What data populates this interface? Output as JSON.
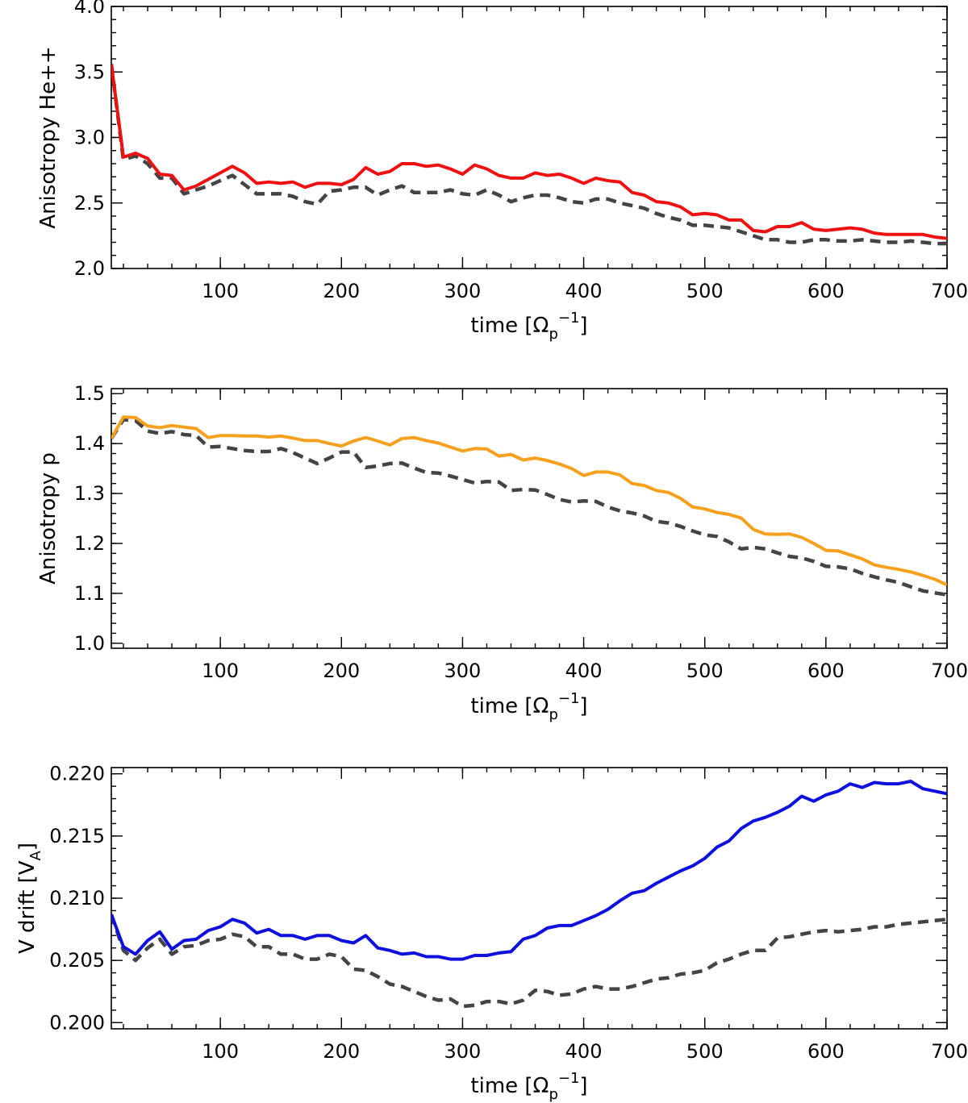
{
  "chart_data": [
    {
      "type": "line",
      "xlabel": "time [Ωp⁻¹]",
      "xlabel_parts": {
        "pre": "time [Ω",
        "sub": "p",
        "sup": "−1",
        "post": "]"
      },
      "ylabel": "Anisotropy He++",
      "xlim": [
        10,
        700
      ],
      "ylim": [
        2.0,
        4.0
      ],
      "xticks": [
        100,
        200,
        300,
        400,
        500,
        600,
        700
      ],
      "xtick_labels": [
        "100",
        "200",
        "300",
        "400",
        "500",
        "600",
        "700"
      ],
      "yticks": [
        2.0,
        2.5,
        3.0,
        3.5,
        4.0
      ],
      "ytick_labels": [
        "2.0",
        "2.5",
        "3.0",
        "3.5",
        "4.0"
      ],
      "x_minor_step": 20,
      "y_minor_step": 0.1,
      "x": [
        10,
        20,
        30,
        40,
        50,
        60,
        70,
        80,
        90,
        100,
        110,
        120,
        130,
        140,
        150,
        160,
        170,
        180,
        190,
        200,
        210,
        220,
        230,
        240,
        250,
        260,
        270,
        280,
        290,
        300,
        310,
        320,
        330,
        340,
        350,
        360,
        370,
        380,
        390,
        400,
        410,
        420,
        430,
        440,
        450,
        460,
        470,
        480,
        490,
        500,
        510,
        520,
        530,
        540,
        550,
        560,
        570,
        580,
        590,
        600,
        610,
        620,
        630,
        640,
        650,
        660,
        670,
        680,
        690,
        700
      ],
      "series": [
        {
          "name": "solid",
          "color": "#ee1111",
          "dash": "solid",
          "values": [
            3.56,
            2.85,
            2.88,
            2.84,
            2.72,
            2.71,
            2.6,
            2.63,
            2.68,
            2.73,
            2.78,
            2.73,
            2.65,
            2.66,
            2.65,
            2.66,
            2.62,
            2.65,
            2.65,
            2.64,
            2.68,
            2.77,
            2.72,
            2.74,
            2.8,
            2.8,
            2.78,
            2.79,
            2.76,
            2.72,
            2.79,
            2.76,
            2.71,
            2.69,
            2.69,
            2.73,
            2.71,
            2.72,
            2.69,
            2.65,
            2.69,
            2.67,
            2.66,
            2.58,
            2.56,
            2.51,
            2.5,
            2.47,
            2.41,
            2.42,
            2.41,
            2.37,
            2.37,
            2.29,
            2.28,
            2.32,
            2.32,
            2.35,
            2.3,
            2.29,
            2.3,
            2.31,
            2.3,
            2.27,
            2.26,
            2.26,
            2.26,
            2.26,
            2.24,
            2.23
          ]
        },
        {
          "name": "dashed",
          "color": "#444444",
          "dash": "dashed",
          "values": [
            3.56,
            2.83,
            2.86,
            2.8,
            2.69,
            2.69,
            2.57,
            2.6,
            2.63,
            2.67,
            2.71,
            2.64,
            2.57,
            2.57,
            2.57,
            2.55,
            2.51,
            2.49,
            2.59,
            2.6,
            2.62,
            2.62,
            2.56,
            2.6,
            2.63,
            2.58,
            2.58,
            2.58,
            2.6,
            2.57,
            2.56,
            2.6,
            2.56,
            2.51,
            2.54,
            2.56,
            2.56,
            2.54,
            2.51,
            2.5,
            2.53,
            2.53,
            2.5,
            2.48,
            2.46,
            2.42,
            2.39,
            2.37,
            2.33,
            2.33,
            2.32,
            2.31,
            2.28,
            2.25,
            2.22,
            2.22,
            2.2,
            2.2,
            2.22,
            2.22,
            2.21,
            2.21,
            2.22,
            2.21,
            2.2,
            2.2,
            2.21,
            2.2,
            2.19,
            2.19
          ]
        }
      ]
    },
    {
      "type": "line",
      "xlabel": "time [Ωp⁻¹]",
      "xlabel_parts": {
        "pre": "time [Ω",
        "sub": "p",
        "sup": "−1",
        "post": "]"
      },
      "ylabel": "Anisotropy p",
      "xlim": [
        10,
        700
      ],
      "ylim": [
        0.99,
        1.51
      ],
      "xticks": [
        100,
        200,
        300,
        400,
        500,
        600,
        700
      ],
      "xtick_labels": [
        "100",
        "200",
        "300",
        "400",
        "500",
        "600",
        "700"
      ],
      "yticks": [
        1.0,
        1.1,
        1.2,
        1.3,
        1.4,
        1.5
      ],
      "ytick_labels": [
        "1.0",
        "1.1",
        "1.2",
        "1.3",
        "1.4",
        "1.5"
      ],
      "x_minor_step": 20,
      "y_minor_step": 0.02,
      "x": [
        10,
        20,
        30,
        40,
        50,
        60,
        70,
        80,
        90,
        100,
        110,
        120,
        130,
        140,
        150,
        160,
        170,
        180,
        190,
        200,
        210,
        220,
        230,
        240,
        250,
        260,
        270,
        280,
        290,
        300,
        310,
        320,
        330,
        340,
        350,
        360,
        370,
        380,
        390,
        400,
        410,
        420,
        430,
        440,
        450,
        460,
        470,
        480,
        490,
        500,
        510,
        520,
        530,
        540,
        550,
        560,
        570,
        580,
        590,
        600,
        610,
        620,
        630,
        640,
        650,
        660,
        670,
        680,
        690,
        700
      ],
      "series": [
        {
          "name": "solid",
          "color": "#f5a01e",
          "dash": "solid",
          "values": [
            1.41,
            1.453,
            1.452,
            1.435,
            1.432,
            1.436,
            1.433,
            1.43,
            1.412,
            1.416,
            1.416,
            1.415,
            1.415,
            1.413,
            1.415,
            1.411,
            1.406,
            1.406,
            1.4,
            1.395,
            1.405,
            1.412,
            1.405,
            1.397,
            1.41,
            1.412,
            1.406,
            1.401,
            1.393,
            1.385,
            1.39,
            1.389,
            1.375,
            1.378,
            1.367,
            1.371,
            1.366,
            1.359,
            1.35,
            1.336,
            1.343,
            1.343,
            1.337,
            1.32,
            1.316,
            1.306,
            1.302,
            1.29,
            1.273,
            1.269,
            1.262,
            1.258,
            1.251,
            1.228,
            1.219,
            1.218,
            1.219,
            1.212,
            1.2,
            1.186,
            1.185,
            1.177,
            1.169,
            1.157,
            1.152,
            1.148,
            1.143,
            1.136,
            1.128,
            1.117
          ]
        },
        {
          "name": "dashed",
          "color": "#444444",
          "dash": "dashed",
          "values": [
            1.41,
            1.448,
            1.446,
            1.425,
            1.42,
            1.424,
            1.418,
            1.416,
            1.393,
            1.394,
            1.39,
            1.386,
            1.384,
            1.384,
            1.39,
            1.382,
            1.371,
            1.36,
            1.371,
            1.383,
            1.383,
            1.352,
            1.355,
            1.36,
            1.361,
            1.351,
            1.342,
            1.341,
            1.335,
            1.328,
            1.321,
            1.324,
            1.323,
            1.306,
            1.308,
            1.307,
            1.298,
            1.288,
            1.283,
            1.285,
            1.284,
            1.273,
            1.265,
            1.261,
            1.255,
            1.244,
            1.241,
            1.234,
            1.225,
            1.217,
            1.214,
            1.203,
            1.189,
            1.192,
            1.189,
            1.181,
            1.174,
            1.171,
            1.164,
            1.154,
            1.153,
            1.149,
            1.14,
            1.133,
            1.127,
            1.122,
            1.113,
            1.105,
            1.101,
            1.097
          ]
        }
      ]
    },
    {
      "type": "line",
      "xlabel": "time [Ωp⁻¹]",
      "xlabel_parts": {
        "pre": "time [Ω",
        "sub": "p",
        "sup": "−1",
        "post": "]"
      },
      "ylabel": "V drift [VA]",
      "ylabel_parts": {
        "pre": "V drift [V",
        "sub": "A",
        "post": "]"
      },
      "xlim": [
        10,
        700
      ],
      "ylim": [
        0.1995,
        0.2205
      ],
      "xticks": [
        100,
        200,
        300,
        400,
        500,
        600,
        700
      ],
      "xtick_labels": [
        "100",
        "200",
        "300",
        "400",
        "500",
        "600",
        "700"
      ],
      "yticks": [
        0.2,
        0.205,
        0.21,
        0.215,
        0.22
      ],
      "ytick_labels": [
        "0.200",
        "0.205",
        "0.210",
        "0.215",
        "0.220"
      ],
      "x_minor_step": 20,
      "y_minor_step": 0.001,
      "x": [
        10,
        20,
        30,
        40,
        50,
        60,
        70,
        80,
        90,
        100,
        110,
        120,
        130,
        140,
        150,
        160,
        170,
        180,
        190,
        200,
        210,
        220,
        230,
        240,
        250,
        260,
        270,
        280,
        290,
        300,
        310,
        320,
        330,
        340,
        350,
        360,
        370,
        380,
        390,
        400,
        410,
        420,
        430,
        440,
        450,
        460,
        470,
        480,
        490,
        500,
        510,
        520,
        530,
        540,
        550,
        560,
        570,
        580,
        590,
        600,
        610,
        620,
        630,
        640,
        650,
        660,
        670,
        680,
        690,
        700
      ],
      "series": [
        {
          "name": "solid",
          "color": "#1010dd",
          "dash": "solid",
          "values": [
            0.2087,
            0.2061,
            0.2055,
            0.2066,
            0.2073,
            0.2059,
            0.2066,
            0.2067,
            0.2074,
            0.2077,
            0.2083,
            0.208,
            0.2072,
            0.2075,
            0.207,
            0.207,
            0.2067,
            0.207,
            0.207,
            0.2066,
            0.2064,
            0.207,
            0.206,
            0.2058,
            0.2055,
            0.2056,
            0.2053,
            0.2053,
            0.2051,
            0.2051,
            0.2054,
            0.2054,
            0.2056,
            0.2057,
            0.2067,
            0.207,
            0.2076,
            0.2078,
            0.2078,
            0.2082,
            0.2086,
            0.2091,
            0.2098,
            0.2104,
            0.2106,
            0.2112,
            0.2117,
            0.2122,
            0.2126,
            0.2132,
            0.2141,
            0.2146,
            0.2156,
            0.2162,
            0.2165,
            0.2169,
            0.2174,
            0.2182,
            0.2178,
            0.2183,
            0.2186,
            0.2192,
            0.2189,
            0.2193,
            0.2192,
            0.2192,
            0.2194,
            0.2188,
            0.2186,
            0.2184
          ]
        },
        {
          "name": "dashed",
          "color": "#444444",
          "dash": "dashed",
          "values": [
            0.2087,
            0.2058,
            0.205,
            0.206,
            0.2067,
            0.2055,
            0.2061,
            0.2062,
            0.2066,
            0.2067,
            0.2071,
            0.2069,
            0.2061,
            0.2061,
            0.2055,
            0.2055,
            0.2051,
            0.2051,
            0.2055,
            0.2053,
            0.2043,
            0.2042,
            0.2037,
            0.2031,
            0.2029,
            0.2025,
            0.2021,
            0.2018,
            0.2019,
            0.2013,
            0.2014,
            0.2017,
            0.2017,
            0.2015,
            0.2018,
            0.2026,
            0.2025,
            0.2022,
            0.2023,
            0.2027,
            0.2029,
            0.2027,
            0.2027,
            0.2029,
            0.2032,
            0.2035,
            0.2036,
            0.2039,
            0.204,
            0.2042,
            0.2048,
            0.2051,
            0.2055,
            0.2058,
            0.2058,
            0.2068,
            0.2069,
            0.2071,
            0.2073,
            0.2074,
            0.2073,
            0.2074,
            0.2075,
            0.2077,
            0.2077,
            0.2079,
            0.208,
            0.2081,
            0.2082,
            0.2083
          ]
        }
      ]
    }
  ]
}
